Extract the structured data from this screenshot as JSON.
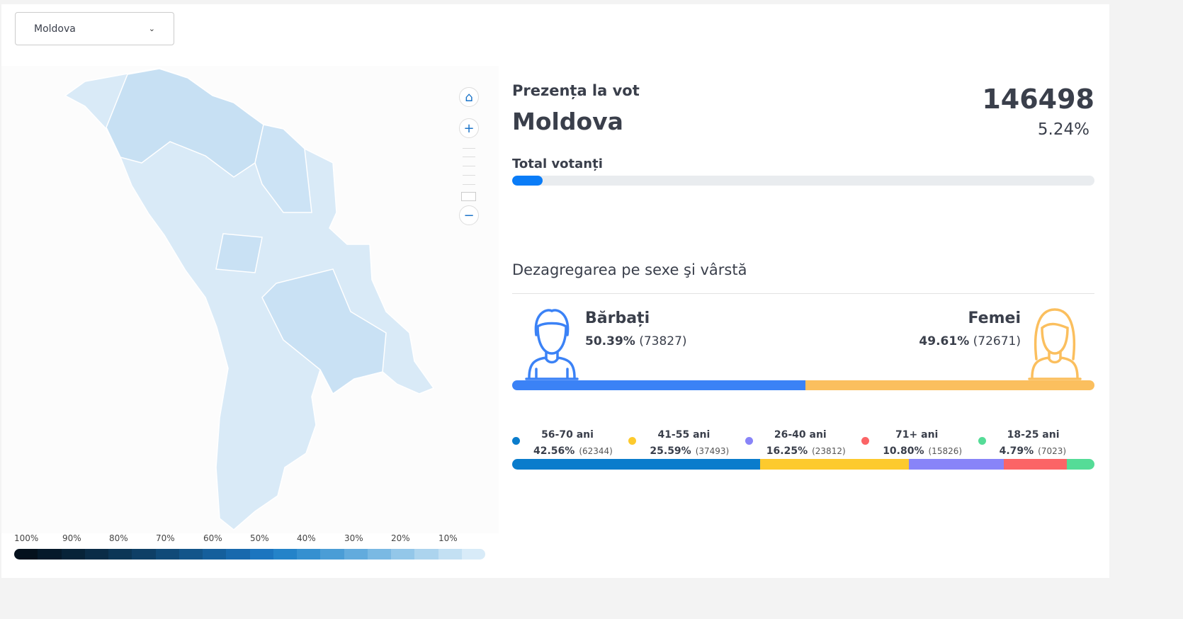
{
  "region_select": {
    "selected": "Moldova"
  },
  "map": {
    "controls": [
      "home-icon",
      "zoom-in-icon",
      "zoom-out-icon"
    ],
    "legend_labels": [
      "100%",
      "90%",
      "80%",
      "70%",
      "60%",
      "50%",
      "40%",
      "30%",
      "20%",
      "10%"
    ],
    "legend_colors": [
      "#04111d",
      "#051a2b",
      "#072338",
      "#0a2c47",
      "#0c3656",
      "#0e3f66",
      "#104a78",
      "#13558a",
      "#155f9c",
      "#1869ad",
      "#1c75bf",
      "#2483c9",
      "#3590d0",
      "#4a9dd6",
      "#62abdd",
      "#7ab9e3",
      "#93c7e9",
      "#acd4ee",
      "#c3e0f3",
      "#d8ebf8"
    ],
    "fill_color": "#d9eaf7"
  },
  "summary": {
    "label": "Prezența la vot",
    "region": "Moldova",
    "total": "146498",
    "percent": "5.24%",
    "progress_label": "Total votanți",
    "progress_value": 5.24,
    "accent": "#0a7cf7"
  },
  "breakdown": {
    "title": "Dezagregarea pe sexe şi vârstă",
    "men": {
      "label": "Bărbați",
      "percent": "50.39%",
      "count": "(73827)",
      "share": 50.39,
      "color": "#3b82f6"
    },
    "women": {
      "label": "Femei",
      "percent": "49.61%",
      "count": "(72671)",
      "share": 49.61,
      "color": "#fbbf5e"
    },
    "ages": [
      {
        "label": "56-70 ani",
        "percent": "42.56%",
        "count": "(62344)",
        "share": 42.56,
        "color": "#0a7ccc"
      },
      {
        "label": "41-55 ani",
        "percent": "25.59%",
        "count": "(37493)",
        "share": 25.59,
        "color": "#fdca2d"
      },
      {
        "label": "26-40 ani",
        "percent": "16.25%",
        "count": "(23812)",
        "share": 16.25,
        "color": "#8884f8"
      },
      {
        "label": "71+ ani",
        "percent": "10.80%",
        "count": "(15826)",
        "share": 10.8,
        "color": "#fb6466"
      },
      {
        "label": "18-25 ani",
        "percent": "4.79%",
        "count": "(7023)",
        "share": 4.79,
        "color": "#55dc97"
      }
    ]
  }
}
